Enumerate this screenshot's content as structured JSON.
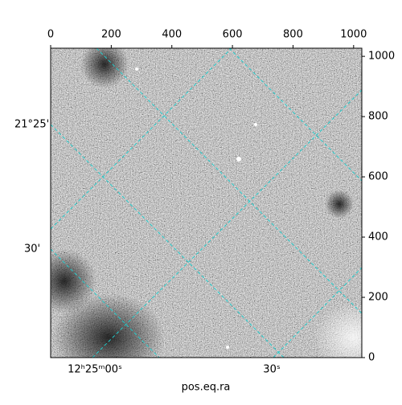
{
  "chart_data": {
    "type": "image",
    "xlabel": "pos.eq.ra",
    "xlim": [
      0,
      1027
    ],
    "ylim": [
      0,
      1027
    ],
    "xticks": [
      0,
      200,
      400,
      600,
      800,
      1000
    ],
    "yticks": [
      0,
      200,
      400,
      600,
      800,
      1000
    ],
    "ra_labels": [
      "12ʰ25ᵐ00ˢ",
      "30ˢ"
    ],
    "dec_labels": [
      "21°25'",
      "30'"
    ],
    "grid_color": "#22cccc"
  }
}
